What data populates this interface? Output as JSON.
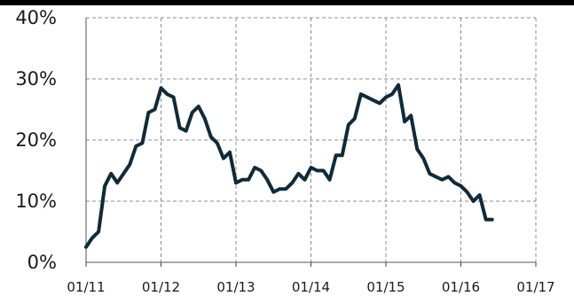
{
  "chart_data": {
    "type": "line",
    "title": "",
    "xlabel": "",
    "ylabel": "",
    "x_ticks": [
      "01/11",
      "01/12",
      "01/13",
      "01/14",
      "01/15",
      "01/16",
      "01/17"
    ],
    "y_ticks": [
      "0%",
      "10%",
      "20%",
      "30%",
      "40%"
    ],
    "ylim": [
      0,
      40
    ],
    "y_unit": "%",
    "grid": true,
    "legend": "none",
    "line_color": "#0f2a3a",
    "grid_color": "#8c8c8c",
    "series": [
      {
        "x": [
          "2011-01",
          "2011-02",
          "2011-03",
          "2011-04",
          "2011-05",
          "2011-06",
          "2011-07",
          "2011-08",
          "2011-09",
          "2011-10",
          "2011-11",
          "2011-12",
          "2012-01",
          "2012-02",
          "2012-03",
          "2012-04",
          "2012-05",
          "2012-06",
          "2012-07",
          "2012-08",
          "2012-09",
          "2012-10",
          "2012-11",
          "2012-12",
          "2013-01",
          "2013-02",
          "2013-03",
          "2013-04",
          "2013-05",
          "2013-06",
          "2013-07",
          "2013-08",
          "2013-09",
          "2013-10",
          "2013-11",
          "2013-12",
          "2014-01",
          "2014-02",
          "2014-03",
          "2014-04",
          "2014-05",
          "2014-06",
          "2014-07",
          "2014-08",
          "2014-09",
          "2014-10",
          "2014-11",
          "2014-12",
          "2015-01",
          "2015-02",
          "2015-03",
          "2015-04",
          "2015-05",
          "2015-06",
          "2015-07",
          "2015-08",
          "2015-09",
          "2015-10",
          "2015-11",
          "2015-12",
          "2016-01",
          "2016-02",
          "2016-03",
          "2016-04",
          "2016-05",
          "2016-06"
        ],
        "values": [
          2.5,
          4.0,
          5.0,
          12.5,
          14.5,
          13.0,
          14.5,
          16.0,
          19.0,
          19.5,
          24.5,
          25.0,
          28.5,
          27.5,
          27.0,
          22.0,
          21.5,
          24.5,
          25.5,
          23.5,
          20.5,
          19.5,
          17.0,
          18.0,
          13.0,
          13.5,
          13.5,
          15.5,
          15.0,
          13.5,
          11.5,
          12.0,
          12.0,
          13.0,
          14.5,
          13.5,
          15.5,
          15.0,
          15.0,
          13.5,
          17.5,
          17.5,
          22.5,
          23.5,
          27.5,
          27.0,
          26.5,
          26.0,
          27.0,
          27.5,
          29.0,
          23.0,
          24.0,
          18.5,
          17.0,
          14.5,
          14.0,
          13.5,
          14.0,
          13.0,
          12.5,
          11.5,
          10.0,
          11.0,
          7.0,
          7.0
        ]
      }
    ]
  }
}
